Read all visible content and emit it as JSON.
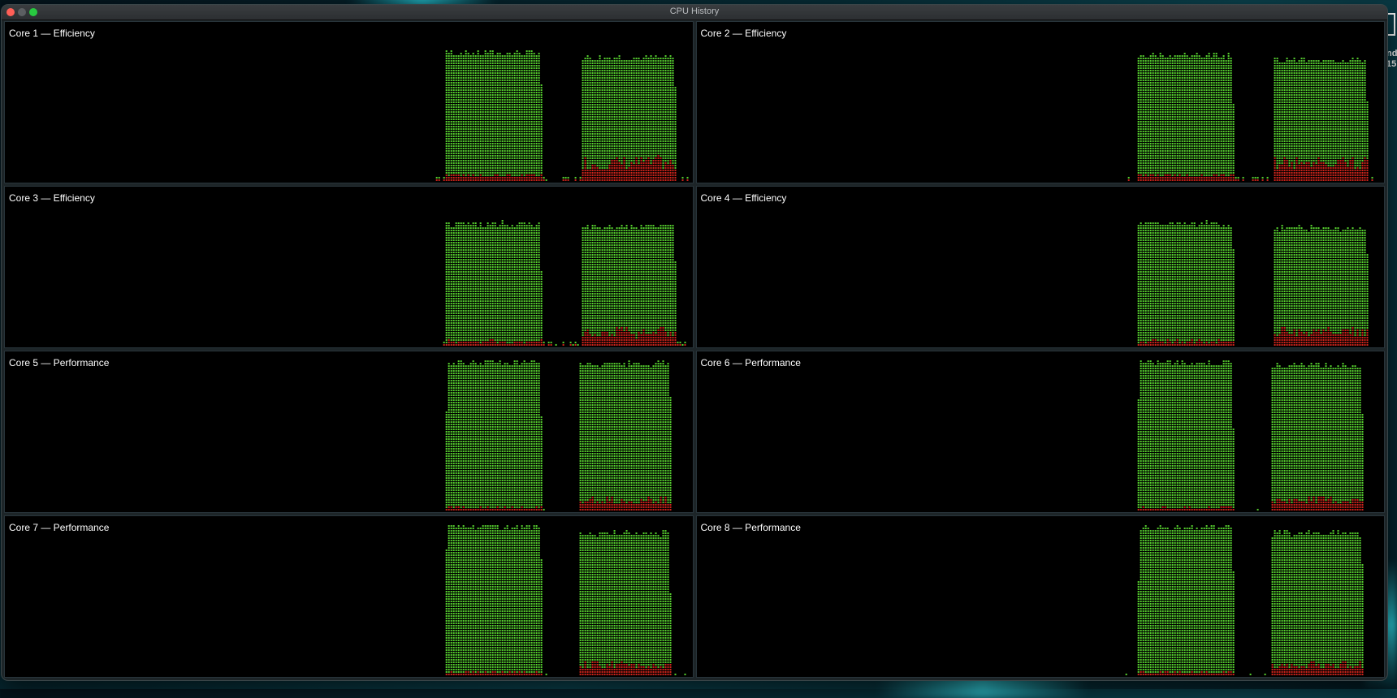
{
  "window": {
    "title": "CPU History"
  },
  "desktop": {
    "text_line1": "nd",
    "text_line2": "15"
  },
  "colors": {
    "user": "#57d12f",
    "system": "#d1251c",
    "background": "#000000"
  },
  "cores": [
    {
      "label": "Core 1 — Efficiency",
      "bursts": [
        {
          "start": 0.64,
          "end": 0.78,
          "user": 0.84,
          "system": 0.04,
          "ramp": "none",
          "pre": [
            0.06
          ]
        },
        {
          "start": 0.838,
          "end": 0.975,
          "user": 0.81,
          "system": 0.12,
          "ramp": "slow"
        }
      ],
      "idle_system": 0.02
    },
    {
      "label": "Core 2 — Efficiency",
      "bursts": [
        {
          "start": 0.64,
          "end": 0.78,
          "user": 0.82,
          "system": 0.04,
          "ramp": "none",
          "pre": [
            0.04
          ]
        },
        {
          "start": 0.838,
          "end": 0.975,
          "user": 0.79,
          "system": 0.12,
          "ramp": "slow"
        }
      ],
      "idle_system": 0.02
    },
    {
      "label": "Core 3 — Efficiency",
      "bursts": [
        {
          "start": 0.64,
          "end": 0.78,
          "user": 0.8,
          "system": 0.03,
          "ramp": "none",
          "pre": [
            0.02
          ]
        },
        {
          "start": 0.838,
          "end": 0.975,
          "user": 0.78,
          "system": 0.09,
          "ramp": "slow"
        }
      ],
      "idle_system": 0.02
    },
    {
      "label": "Core 4 — Efficiency",
      "bursts": [
        {
          "start": 0.64,
          "end": 0.78,
          "user": 0.8,
          "system": 0.03,
          "ramp": "none",
          "pre": [
            0.02
          ]
        },
        {
          "start": 0.838,
          "end": 0.975,
          "user": 0.77,
          "system": 0.09,
          "ramp": "slow"
        }
      ],
      "idle_system": 0.0
    },
    {
      "label": "Core 5 — Performance",
      "bursts": [
        {
          "start": 0.64,
          "end": 0.78,
          "user": 0.97,
          "system": 0.02,
          "ramp": "fast",
          "pre": [
            0.03
          ]
        },
        {
          "start": 0.833,
          "end": 0.97,
          "user": 0.96,
          "system": 0.07,
          "ramp": "fast"
        }
      ],
      "idle_system": 0.0
    },
    {
      "label": "Core 6 — Performance",
      "bursts": [
        {
          "start": 0.64,
          "end": 0.78,
          "user": 0.97,
          "system": 0.02,
          "ramp": "fast",
          "pre": [
            0.01
          ]
        },
        {
          "start": 0.833,
          "end": 0.97,
          "user": 0.95,
          "system": 0.07,
          "ramp": "fast"
        }
      ],
      "idle_system": 0.0
    },
    {
      "label": "Core 7 — Performance",
      "bursts": [
        {
          "start": 0.64,
          "end": 0.78,
          "user": 0.97,
          "system": 0.02,
          "ramp": "fast"
        },
        {
          "start": 0.833,
          "end": 0.97,
          "user": 0.93,
          "system": 0.07,
          "ramp": "fast"
        }
      ],
      "idle_system": 0.0
    },
    {
      "label": "Core 8 — Performance",
      "bursts": [
        {
          "start": 0.64,
          "end": 0.78,
          "user": 0.97,
          "system": 0.02,
          "ramp": "fast"
        },
        {
          "start": 0.833,
          "end": 0.97,
          "user": 0.93,
          "system": 0.07,
          "ramp": "fast"
        }
      ],
      "idle_system": 0.0
    }
  ]
}
